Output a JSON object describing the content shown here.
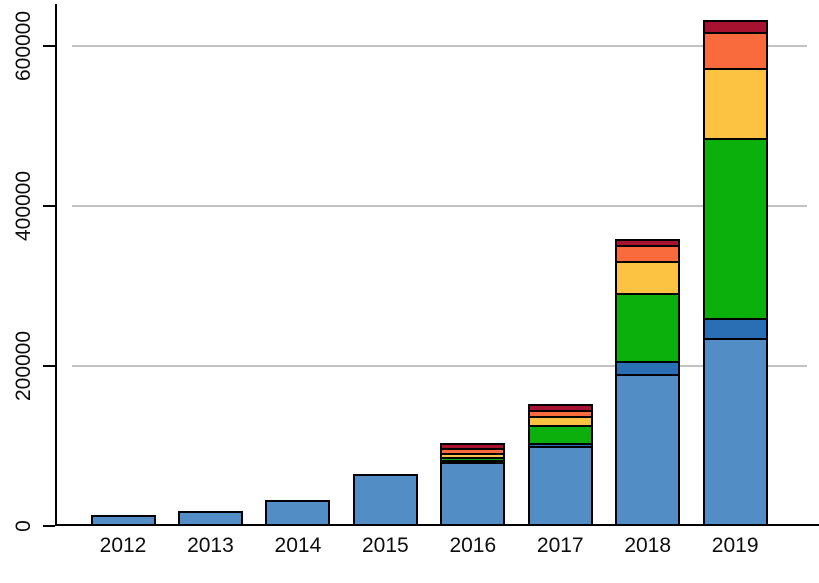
{
  "chart_data": {
    "type": "bar",
    "subtype": "stacked",
    "title": "",
    "xlabel": "",
    "ylabel": "",
    "legend": "none",
    "grid": true,
    "categories": [
      "2012",
      "2013",
      "2014",
      "2015",
      "2016",
      "2017",
      "2018",
      "2019"
    ],
    "series": [
      {
        "name": "steel-blue",
        "color": "#538dc5",
        "values": [
          8500,
          13500,
          28000,
          60000,
          78000,
          98000,
          188000,
          232000
        ]
      },
      {
        "name": "dark-blue",
        "color": "#2a6fb4",
        "values": [
          0,
          0,
          0,
          0,
          3000,
          4000,
          16000,
          25000
        ]
      },
      {
        "name": "green",
        "color": "#0cb00c",
        "values": [
          0,
          0,
          0,
          0,
          4000,
          22000,
          85000,
          225000
        ]
      },
      {
        "name": "yellow",
        "color": "#fcc343",
        "values": [
          0,
          0,
          0,
          0,
          5000,
          11000,
          40000,
          88000
        ]
      },
      {
        "name": "orange-red",
        "color": "#f96b3c",
        "values": [
          0,
          0,
          0,
          0,
          6000,
          8000,
          20000,
          45000
        ]
      },
      {
        "name": "dark-red",
        "color": "#a81231",
        "values": [
          0,
          0,
          0,
          0,
          4000,
          5000,
          5000,
          12000
        ]
      }
    ],
    "totals": [
      8500,
      13500,
      28000,
      60000,
      100000,
      148000,
      354000,
      627000
    ],
    "ylim": [
      0,
      650000
    ],
    "yticks": [
      {
        "value": 0,
        "label": "0"
      },
      {
        "value": 200000,
        "label": "200000"
      },
      {
        "value": 400000,
        "label": "400000"
      },
      {
        "value": 600000,
        "label": "600000"
      }
    ],
    "colors": {
      "axis": "#000000",
      "gridline": "#c2c2c2",
      "background": "#ffffff",
      "tick_label": "#0d0d0d",
      "bar_outline": "#000000"
    }
  }
}
